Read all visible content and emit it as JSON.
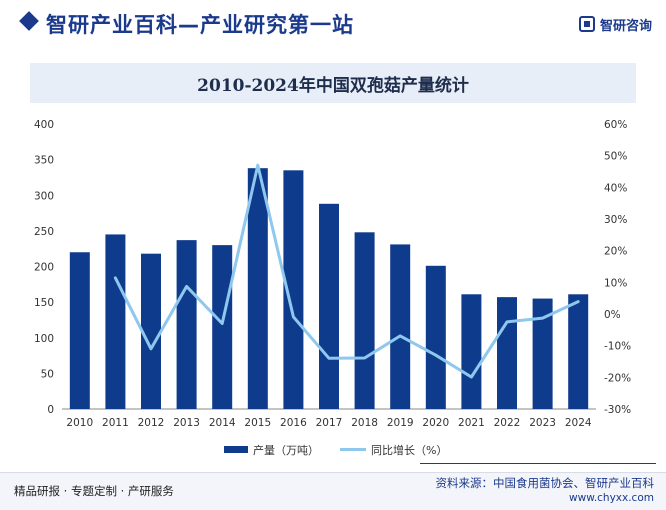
{
  "header": {
    "brand_title": "智研产业百科—产业研究第一站",
    "logo_text": "智研咨询"
  },
  "chart_data": {
    "type": "bar",
    "title": "2010-2024年中国双孢菇产量统计",
    "categories": [
      "2010",
      "2011",
      "2012",
      "2013",
      "2014",
      "2015",
      "2016",
      "2017",
      "2018",
      "2019",
      "2020",
      "2021",
      "2022",
      "2023",
      "2024"
    ],
    "series": [
      {
        "name": "产量（万吨）",
        "type": "bar",
        "axis": "left",
        "values": [
          220,
          245,
          218,
          237,
          230,
          338,
          335,
          288,
          248,
          231,
          201,
          161,
          157,
          155,
          161
        ]
      },
      {
        "name": "同比增长（%）",
        "type": "line",
        "axis": "right",
        "values": [
          null,
          11.4,
          -11.0,
          8.7,
          -3.0,
          47.0,
          -0.9,
          -14.0,
          -13.9,
          -6.9,
          -13.0,
          -19.9,
          -2.5,
          -1.3,
          3.9
        ]
      }
    ],
    "y_left": {
      "min": 0,
      "max": 400,
      "ticks": [
        0,
        50,
        100,
        150,
        200,
        250,
        300,
        350,
        400
      ]
    },
    "y_right": {
      "min": -30,
      "max": 60,
      "ticks": [
        -30,
        -20,
        -10,
        0,
        10,
        20,
        30,
        40,
        50,
        60
      ],
      "tick_suffix": "%"
    },
    "grid": false,
    "legend_position": "bottom",
    "colors": {
      "bar": "#0f3b8c",
      "line": "#8ec8ee"
    }
  },
  "footer": {
    "slogan": "精品研报 · 专题定制 · 产研服务",
    "source": "资料来源：中国食用菌协会、智研产业百科",
    "url": "www.chyxx.com"
  }
}
